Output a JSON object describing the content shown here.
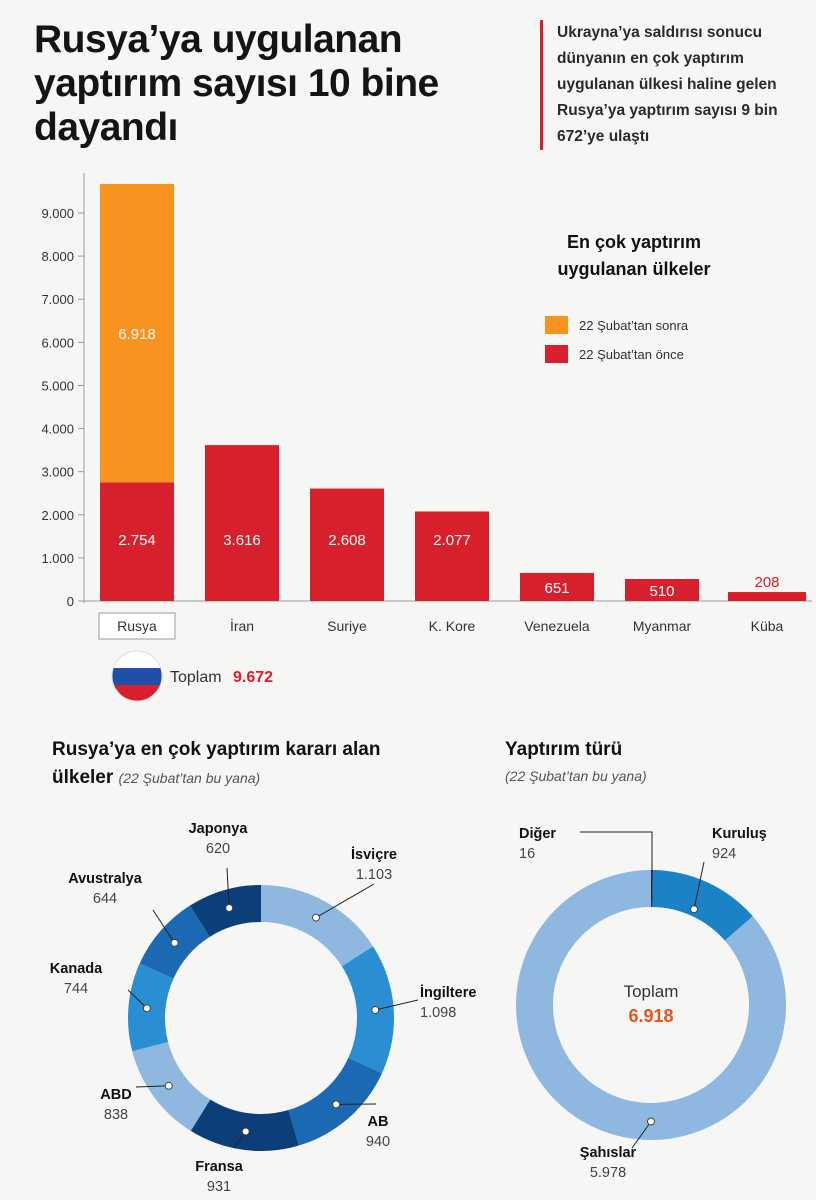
{
  "headline": "Rusya’ya uygulanan yaptırım sayısı 10 bine dayandı",
  "intro": "Ukrayna’ya saldırısı sonucu dünyanın en çok yaptırım uygulanan ülkesi haline gelen Rusya’ya yaptırım sayısı 9 bin 672’ye ulaştı",
  "colors": {
    "after": "#f7931e",
    "before": "#d8202d",
    "axis": "#999999",
    "highlight_total": "#d8202d",
    "donut_total": "#e8531f"
  },
  "chart_data": [
    {
      "type": "bar",
      "stacked": true,
      "title": "En çok yaptırım uygulanan ülkeler",
      "categories": [
        "Rusya",
        "İran",
        "Suriye",
        "K. Kore",
        "Venezuela",
        "Myanmar",
        "Küba"
      ],
      "highlight_category": "Rusya",
      "series": [
        {
          "name": "22 Şubat’tan önce",
          "values": [
            2754,
            3616,
            2608,
            2077,
            651,
            510,
            208
          ],
          "labels": [
            "2.754",
            "3.616",
            "2.608",
            "2.077",
            "651",
            "510",
            "208"
          ]
        },
        {
          "name": "22 Şubat’tan sonra",
          "values": [
            6918,
            0,
            0,
            0,
            0,
            0,
            0
          ],
          "labels": [
            "6.918",
            "",
            "",
            "",
            "",
            "",
            ""
          ]
        }
      ],
      "y_ticks": [
        0,
        1000,
        2000,
        3000,
        4000,
        5000,
        6000,
        7000,
        8000,
        9000
      ],
      "y_tick_labels": [
        "0",
        "1.000",
        "2.000",
        "3.000",
        "4.000",
        "5.000",
        "6.000",
        "7.000",
        "8.000",
        "9.000"
      ],
      "ylim": [
        0,
        9900
      ],
      "legend_position": "top-right",
      "legend_order": [
        "22 Şubat’tan sonra",
        "22 Şubat’tan önce"
      ],
      "total_label": "Toplam",
      "total_value": "9.672",
      "total_flag": "russia-flag"
    },
    {
      "type": "pie",
      "donut": true,
      "title": "Rusya’ya en çok yaptırım kararı alan ülkeler",
      "subtitle": "(22 Şubat’tan bu yana)",
      "slices": [
        {
          "label": "İsviçre",
          "value": 1103,
          "value_label": "1.103",
          "color": "#8fb8e0"
        },
        {
          "label": "İngiltere",
          "value": 1098,
          "value_label": "1.098",
          "color": "#2a8fd2"
        },
        {
          "label": "AB",
          "value": 940,
          "value_label": "940",
          "color": "#1a69b2"
        },
        {
          "label": "Fransa",
          "value": 931,
          "value_label": "931",
          "color": "#0c3e7a"
        },
        {
          "label": "ABD",
          "value": 838,
          "value_label": "838",
          "color": "#8fb8e0"
        },
        {
          "label": "Kanada",
          "value": 744,
          "value_label": "744",
          "color": "#2a8fd2"
        },
        {
          "label": "Avustralya",
          "value": 644,
          "value_label": "644",
          "color": "#1a69b2"
        },
        {
          "label": "Japonya",
          "value": 620,
          "value_label": "620",
          "color": "#0c3e7a"
        }
      ]
    },
    {
      "type": "pie",
      "donut": true,
      "title": "Yaptırım türü",
      "subtitle": "(22 Şubat’tan bu yana)",
      "center_label": "Toplam",
      "center_value": "6.918",
      "slices": [
        {
          "label": "Diğer",
          "value": 16,
          "value_label": "16",
          "color": "#0c3e7a"
        },
        {
          "label": "Kuruluş",
          "value": 924,
          "value_label": "924",
          "color": "#1b82c8"
        },
        {
          "label": "Şahıslar",
          "value": 5978,
          "value_label": "5.978",
          "color": "#8fb8e0"
        }
      ]
    }
  ]
}
